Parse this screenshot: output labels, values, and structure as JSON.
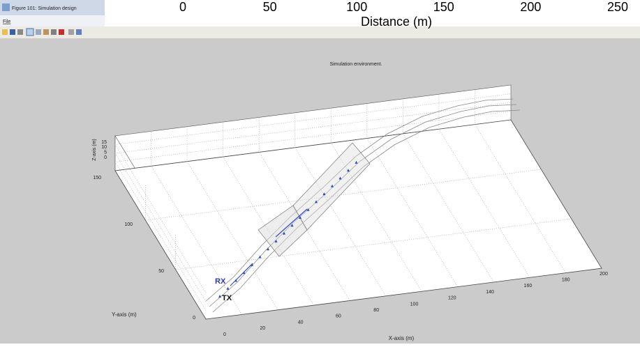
{
  "window": {
    "title": "Figure 101: Simulation design",
    "menu": [
      "File"
    ]
  },
  "background_axis": {
    "ticks": [
      "0",
      "50",
      "100",
      "150",
      "200",
      "250"
    ],
    "label": "Distance (m)"
  },
  "plot": {
    "title": "Simulation environment.",
    "x_axis": {
      "label": "X-axis (m)",
      "ticks": [
        "0",
        "20",
        "40",
        "60",
        "80",
        "100",
        "120",
        "140",
        "160",
        "180",
        "200"
      ]
    },
    "y_axis": {
      "label": "Y-axis (m)",
      "ticks": [
        "0",
        "50",
        "100",
        "150"
      ]
    },
    "z_axis": {
      "label": "Z-axis (m)",
      "ticks": [
        "0",
        "5",
        "10",
        "15"
      ]
    },
    "annotations": {
      "rx": "RX",
      "tx": "TX"
    }
  }
}
